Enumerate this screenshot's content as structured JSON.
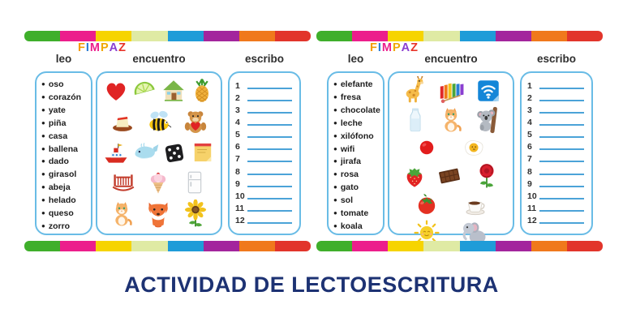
{
  "title": "ACTIVIDAD DE LECTOESCRITURA",
  "title_color": "#1d3273",
  "stripe_colors": [
    "#3faf2b",
    "#ec1e8c",
    "#f6d400",
    "#dfeaa4",
    "#1f9cd8",
    "#a3259d",
    "#f0791c",
    "#e2352b"
  ],
  "logo": {
    "text": "FIMPAZ",
    "letters": [
      {
        "ch": "F",
        "color": "#f59b00"
      },
      {
        "ch": "I",
        "color": "#2d7dd2"
      },
      {
        "ch": "M",
        "color": "#ec1e8c"
      },
      {
        "ch": "P",
        "color": "#f0a800"
      },
      {
        "ch": "A",
        "color": "#8a3fd1"
      },
      {
        "ch": "Z",
        "color": "#e8342a"
      }
    ]
  },
  "headers": {
    "leo": "leo",
    "encuentro": "encuentro",
    "escribo": "escribo"
  },
  "box_border_color": "#69bce6",
  "write_line_color": "#4ba3d8",
  "panels": [
    {
      "words": [
        "oso",
        "corazón",
        "yate",
        "piña",
        "casa",
        "ballena",
        "dado",
        "girasol",
        "abeja",
        "helado",
        "queso",
        "zorro"
      ],
      "picture_rows": [
        [
          "heart",
          "lime",
          "house",
          "pineapple"
        ],
        [
          "cheese",
          "bee",
          "teddy-bear"
        ],
        [
          "ship",
          "whale",
          "dice",
          "sticky-note"
        ],
        [
          "crib",
          "ice-cream",
          "refrigerator"
        ],
        [
          "cat",
          "fox",
          "sunflower"
        ]
      ],
      "line_numbers": [
        "1",
        "2",
        "3",
        "4",
        "5",
        "6",
        "7",
        "8",
        "9",
        "10",
        "11",
        "12"
      ]
    },
    {
      "words": [
        "elefante",
        "fresa",
        "chocolate",
        "leche",
        "xilófono",
        "wifi",
        "jirafa",
        "rosa",
        "gato",
        "sol",
        "tomate",
        "koala"
      ],
      "picture_rows": [
        [
          "giraffe",
          "xylophone",
          "wifi"
        ],
        [
          "milk-bottle",
          "cat",
          "koala"
        ],
        [
          "red-ball",
          "fried-egg"
        ],
        [
          "strawberry",
          "chocolate-bar",
          "rose"
        ],
        [
          "tomato",
          "coffee-cup"
        ],
        [
          "sun",
          "elephant"
        ]
      ],
      "line_numbers": [
        "1",
        "2",
        "3",
        "4",
        "5",
        "6",
        "7",
        "8",
        "9",
        "10",
        "11",
        "12"
      ]
    }
  ]
}
